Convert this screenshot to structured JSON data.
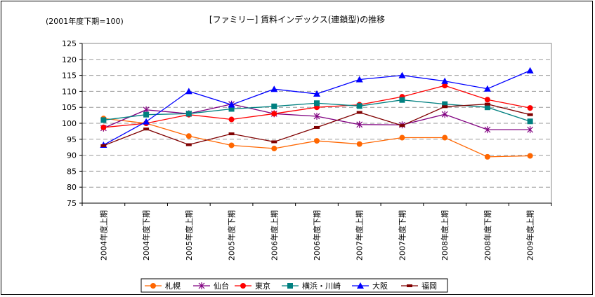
{
  "chart_data": {
    "type": "line",
    "title": "[ファミリー] 賃料インデックス(連鎖型)の推移",
    "subtitle": "(2001年度下期=100)",
    "xlabel": "",
    "ylabel": "",
    "ylim": [
      75,
      125
    ],
    "yticks": [
      75,
      80,
      85,
      90,
      95,
      100,
      105,
      110,
      115,
      120,
      125
    ],
    "grid": true,
    "legend_position": "bottom",
    "categories": [
      "2004年度上期",
      "2004年度下期",
      "2005年度上期",
      "2005年度下期",
      "2006年度上期",
      "2006年度下期",
      "2007年度上期",
      "2007年度下期",
      "2008年度上期",
      "2008年度下期",
      "2009年度上期"
    ],
    "series": [
      {
        "name": "札幌",
        "color": "#FF6600",
        "marker": "circle",
        "values": [
          101.5,
          100.0,
          96.0,
          93.1,
          92.1,
          94.5,
          93.5,
          95.5,
          95.5,
          89.5,
          89.8
        ]
      },
      {
        "name": "仙台",
        "color": "#800080",
        "marker": "star",
        "values": [
          98.5,
          104.2,
          103.0,
          106.0,
          103.0,
          102.2,
          99.6,
          99.5,
          102.8,
          98.0,
          98.0
        ]
      },
      {
        "name": "東京",
        "color": "#FF0000",
        "marker": "circle",
        "values": [
          98.7,
          100.0,
          102.7,
          101.2,
          103.0,
          105.0,
          105.8,
          108.3,
          111.8,
          107.4,
          104.8
        ]
      },
      {
        "name": "横浜・川崎",
        "color": "#008080",
        "marker": "square",
        "values": [
          101.0,
          102.7,
          103.0,
          104.5,
          105.3,
          106.3,
          105.4,
          107.3,
          106.0,
          105.0,
          100.6
        ]
      },
      {
        "name": "大阪",
        "color": "#0000FF",
        "marker": "triangle",
        "values": [
          93.2,
          100.5,
          110.0,
          105.8,
          110.7,
          109.2,
          113.7,
          115.0,
          113.2,
          110.8,
          116.5
        ]
      },
      {
        "name": "福岡",
        "color": "#800000",
        "marker": "dash",
        "values": [
          93.0,
          98.2,
          93.3,
          96.7,
          94.2,
          98.7,
          103.4,
          99.3,
          105.2,
          106.0,
          102.7
        ]
      }
    ]
  }
}
